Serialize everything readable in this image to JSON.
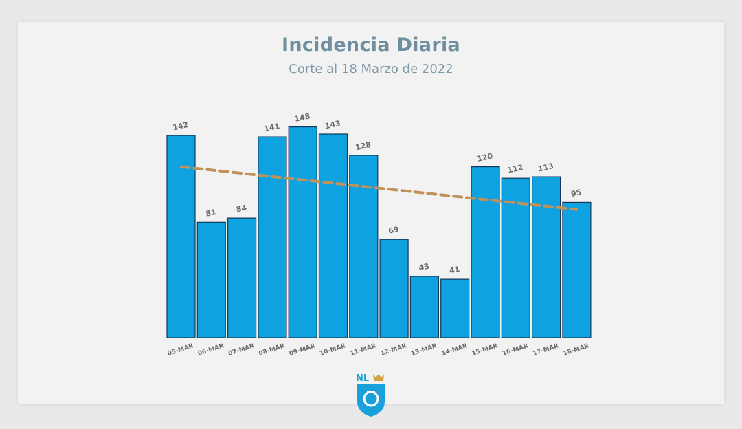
{
  "chart_data": {
    "type": "bar",
    "title": "Incidencia Diaria",
    "subtitle": "Corte al 18 Marzo de 2022",
    "categories": [
      "05-MAR",
      "06-MAR",
      "07-MAR",
      "08-MAR",
      "09-MAR",
      "10-MAR",
      "11-MAR",
      "12-MAR",
      "13-MAR",
      "14-MAR",
      "15-MAR",
      "16-MAR",
      "17-MAR",
      "18-MAR"
    ],
    "values": [
      142,
      81,
      84,
      141,
      148,
      143,
      128,
      69,
      43,
      41,
      120,
      112,
      113,
      95
    ],
    "trendline": {
      "type": "linear",
      "start": 120,
      "end": 90
    },
    "ylim": [
      0,
      150
    ],
    "xlabel": "",
    "ylabel": "",
    "grid": false,
    "colors": {
      "bar": "#0ea3e0",
      "bar_stroke": "#16375a",
      "trend": "#c0925a",
      "label": "#6b6b6b",
      "title": "#6f8ea0",
      "subtitle": "#7f98a8"
    }
  },
  "logo": {
    "icon": "nl-shield-icon",
    "text": "NL",
    "colors": {
      "shield": "#1aa1dc",
      "crown": "#d1a44a",
      "text": "#1aa1dc"
    }
  }
}
